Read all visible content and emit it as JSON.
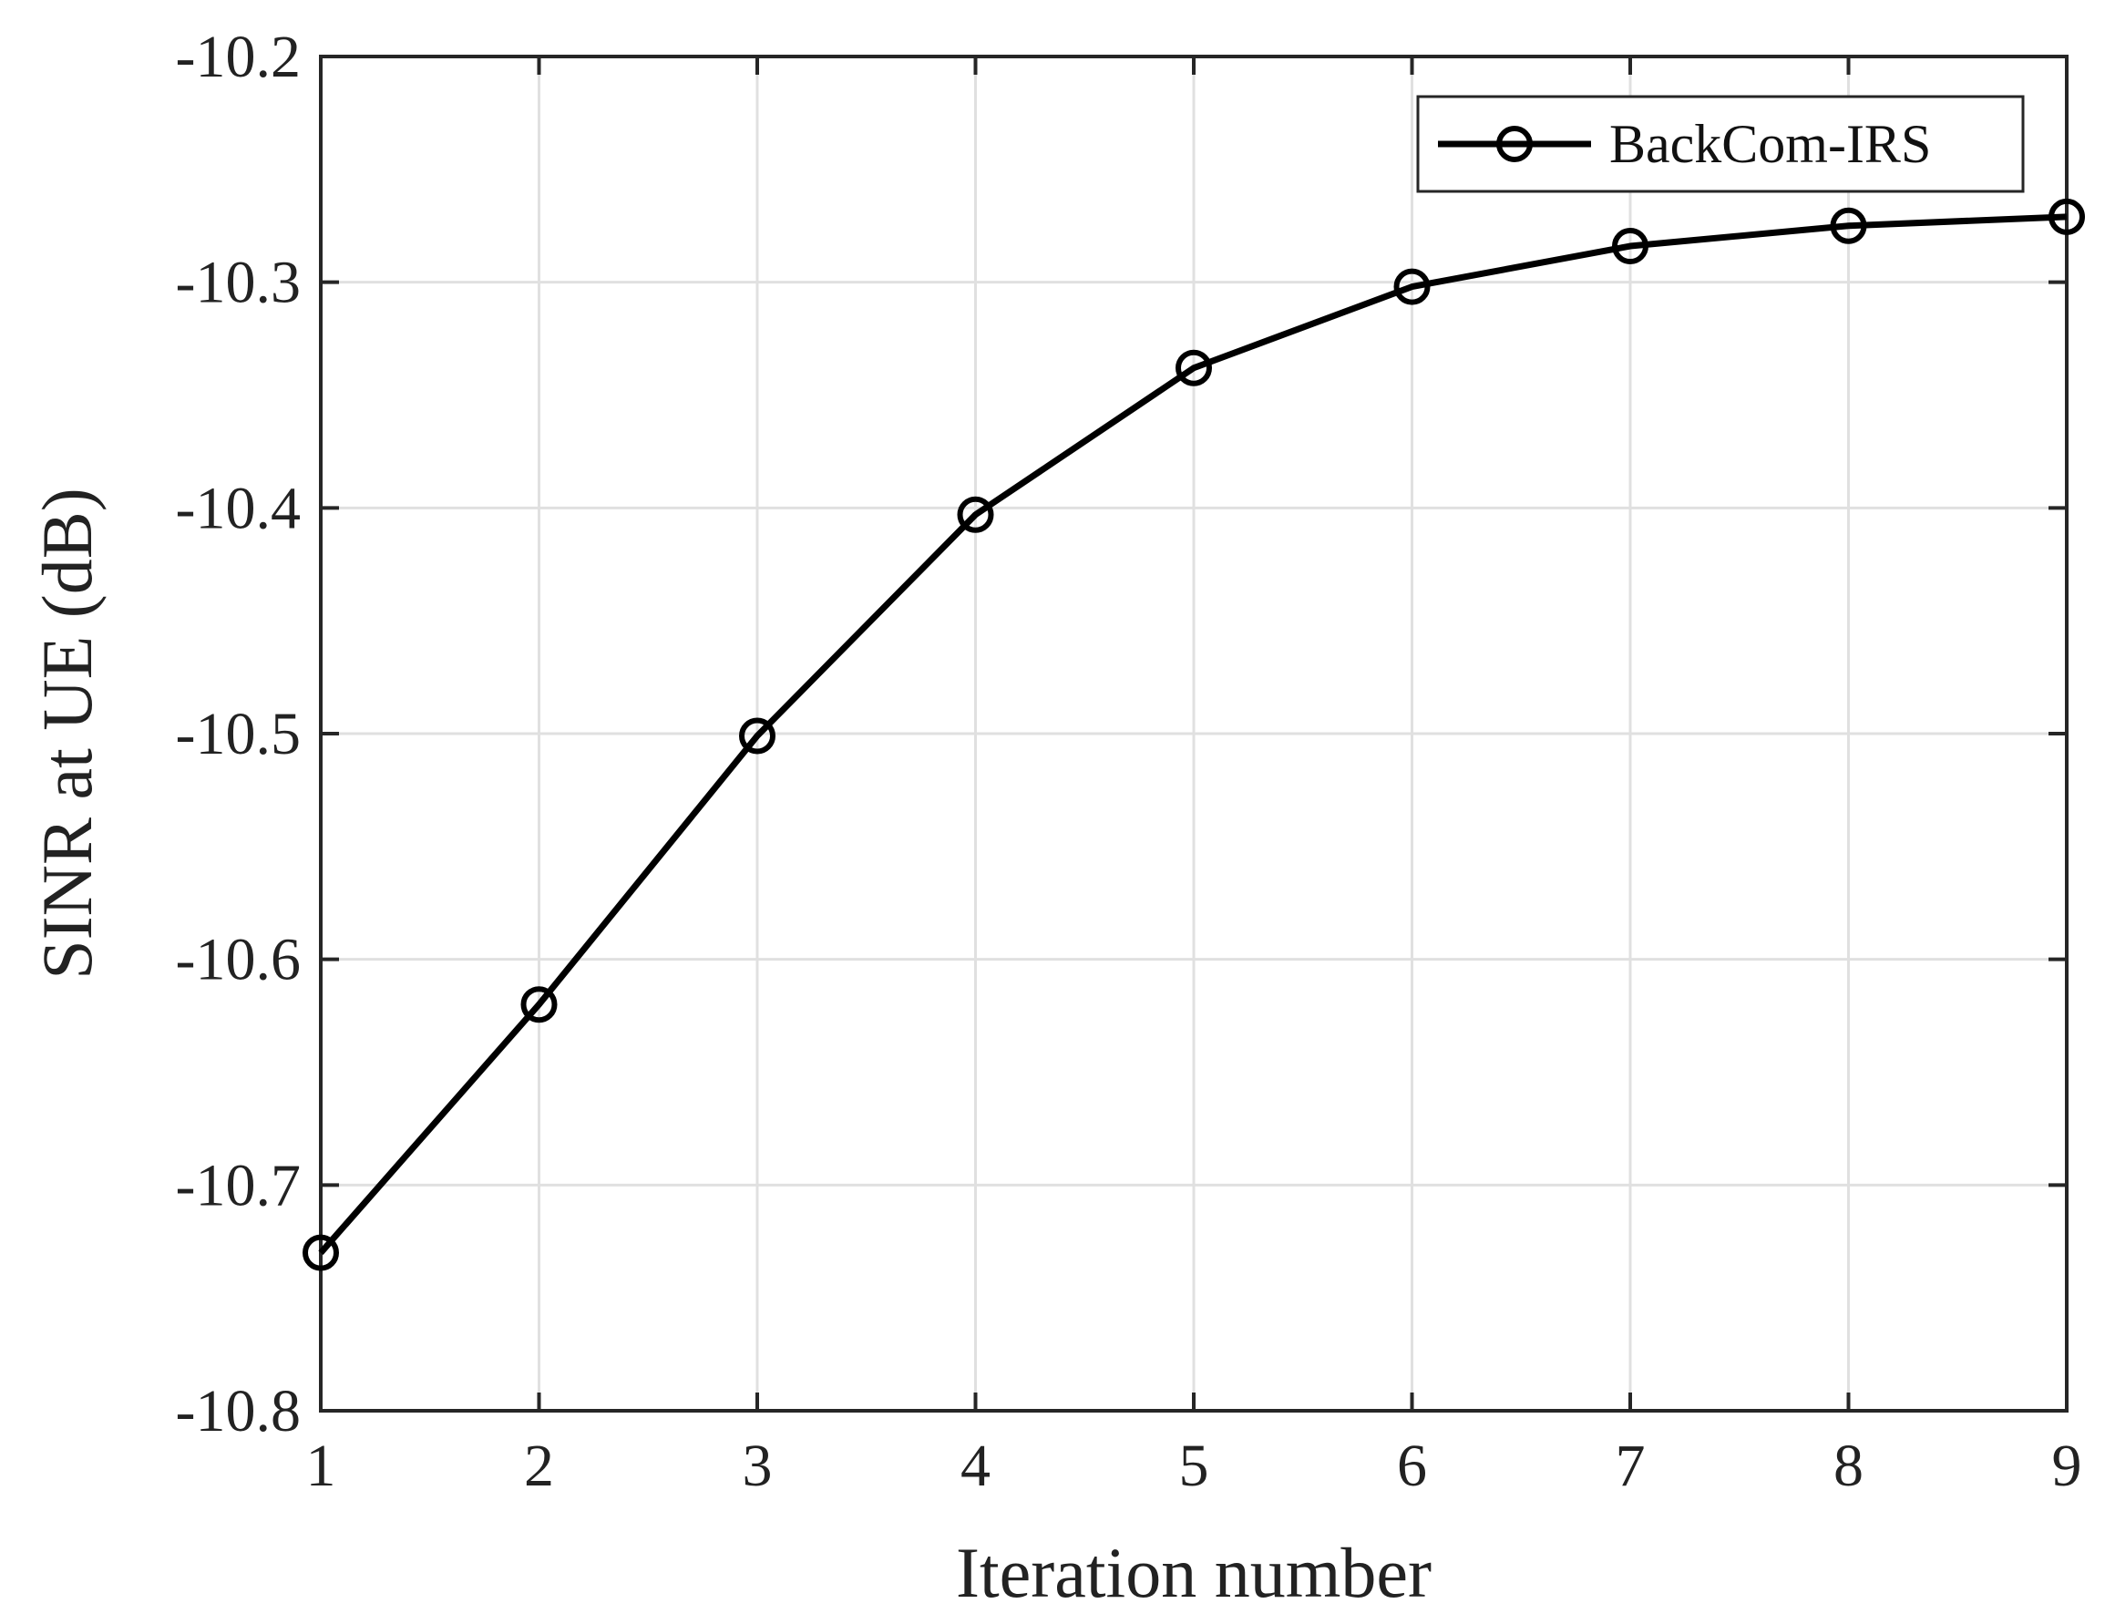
{
  "chart_data": {
    "type": "line",
    "xlabel": "Iteration number",
    "ylabel": "SINR at UE (dB)",
    "xlim": [
      1,
      9
    ],
    "ylim": [
      -10.8,
      -10.2
    ],
    "xticks": [
      1,
      2,
      3,
      4,
      5,
      6,
      7,
      8,
      9
    ],
    "yticks": [
      -10.8,
      -10.7,
      -10.6,
      -10.5,
      -10.4,
      -10.3,
      -10.2
    ],
    "xtick_labels": [
      "1",
      "2",
      "3",
      "4",
      "5",
      "6",
      "7",
      "8",
      "9"
    ],
    "ytick_labels": [
      "-10.8",
      "-10.7",
      "-10.6",
      "-10.5",
      "-10.4",
      "-10.3",
      "-10.2"
    ],
    "grid": true,
    "legend": {
      "position": "top-right"
    },
    "series": [
      {
        "name": "BackCom-IRS",
        "color": "#000000",
        "marker": "circle",
        "x": [
          1,
          2,
          3,
          4,
          5,
          6,
          7,
          8,
          9
        ],
        "values": [
          -10.73,
          -10.62,
          -10.501,
          -10.403,
          -10.338,
          -10.302,
          -10.284,
          -10.275,
          -10.271
        ]
      }
    ]
  }
}
